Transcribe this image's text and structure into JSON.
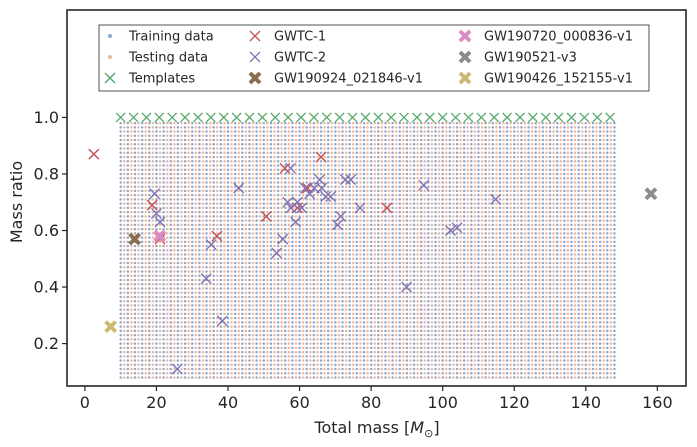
{
  "chart_data": {
    "type": "scatter",
    "xlabel": "Total mass [",
    "xlabel_symbol": "M",
    "xlabel_sub": "⊙",
    "xlabel_close": "]",
    "ylabel": "Mass ratio",
    "xlim": [
      -5,
      168
    ],
    "ylim": [
      0.05,
      1.38
    ],
    "xticks": [
      0,
      20,
      40,
      60,
      80,
      100,
      120,
      140,
      160
    ],
    "yticks": [
      0.2,
      0.4,
      0.6,
      0.8,
      1.0
    ],
    "ytick_labels": [
      "0.2",
      "0.4",
      "0.6",
      "0.8",
      "1.0"
    ],
    "grid": false,
    "legend_position": "top",
    "background_grid": {
      "x_start": 10,
      "x_end": 148,
      "x_step": 1,
      "q_start": 0.08,
      "q_end": 0.98,
      "q_step": 0.015,
      "training_color": "#8fa8cf",
      "testing_color": "#f0b89e"
    },
    "templates": {
      "x": [
        10,
        13.6,
        17.2,
        20.8,
        24.4,
        28,
        31.6,
        35.2,
        38.8,
        42.4,
        46,
        49.6,
        53.2,
        56.8,
        60.4,
        64,
        67.6,
        71.2,
        74.8,
        78.4,
        82,
        85.6,
        89.2,
        92.8,
        96.4,
        100,
        103.6,
        107.2,
        110.8,
        114.4,
        118,
        121.6,
        125.2,
        128.8,
        132.4,
        136,
        139.6,
        143.2,
        146.8
      ],
      "q": 1.0,
      "color": "#55a868"
    },
    "series": [
      {
        "name": "Training data",
        "marker": "dot",
        "color": "#8fa8cf"
      },
      {
        "name": "Testing data",
        "marker": "dot",
        "color": "#f0b89e"
      },
      {
        "name": "Templates",
        "marker": "x",
        "color": "#55a868"
      },
      {
        "name": "GWTC-1",
        "marker": "x",
        "color": "#c44e52",
        "x": [
          2.5,
          18.8,
          21,
          36.9,
          50.7,
          55.9,
          59.4,
          62.2,
          66,
          84.4
        ],
        "y": [
          0.87,
          0.69,
          0.57,
          0.58,
          0.65,
          0.82,
          0.68,
          0.75,
          0.86,
          0.68
        ]
      },
      {
        "name": "GWTC-2",
        "marker": "x",
        "color": "#8172b2",
        "x": [
          19.5,
          20,
          21,
          25.8,
          33.9,
          35.3,
          38.4,
          43,
          53.6,
          55.3,
          56.7,
          57.5,
          57.6,
          58.9,
          59.4,
          60.6,
          61.6,
          62.8,
          64.1,
          65.6,
          66.2,
          67.3,
          68.7,
          70.6,
          71.5,
          72.8,
          74.3,
          76.9,
          89.9,
          94.7,
          102.2,
          104,
          114.8
        ],
        "y": [
          0.73,
          0.66,
          0.63,
          0.11,
          0.43,
          0.55,
          0.28,
          0.75,
          0.52,
          0.57,
          0.7,
          0.82,
          0.68,
          0.63,
          0.7,
          0.68,
          0.75,
          0.73,
          0.75,
          0.78,
          0.75,
          0.72,
          0.72,
          0.62,
          0.65,
          0.78,
          0.78,
          0.68,
          0.4,
          0.76,
          0.6,
          0.61,
          0.71
        ]
      },
      {
        "name": "GW190924_021846-v1",
        "marker": "x-bold",
        "color": "#8c6d4f",
        "x": [
          13.9
        ],
        "y": [
          0.57
        ]
      },
      {
        "name": "GW190720_000836-v1",
        "marker": "x-bold",
        "color": "#da8bc3",
        "x": [
          20.9
        ],
        "y": [
          0.58
        ]
      },
      {
        "name": "GW190521-v3",
        "marker": "x-bold",
        "color": "#8c8c8c",
        "x": [
          158.2
        ],
        "y": [
          0.73
        ]
      },
      {
        "name": "GW190426_152155-v1",
        "marker": "x-bold",
        "color": "#ccb974",
        "x": [
          7.2
        ],
        "y": [
          0.26
        ]
      }
    ]
  }
}
